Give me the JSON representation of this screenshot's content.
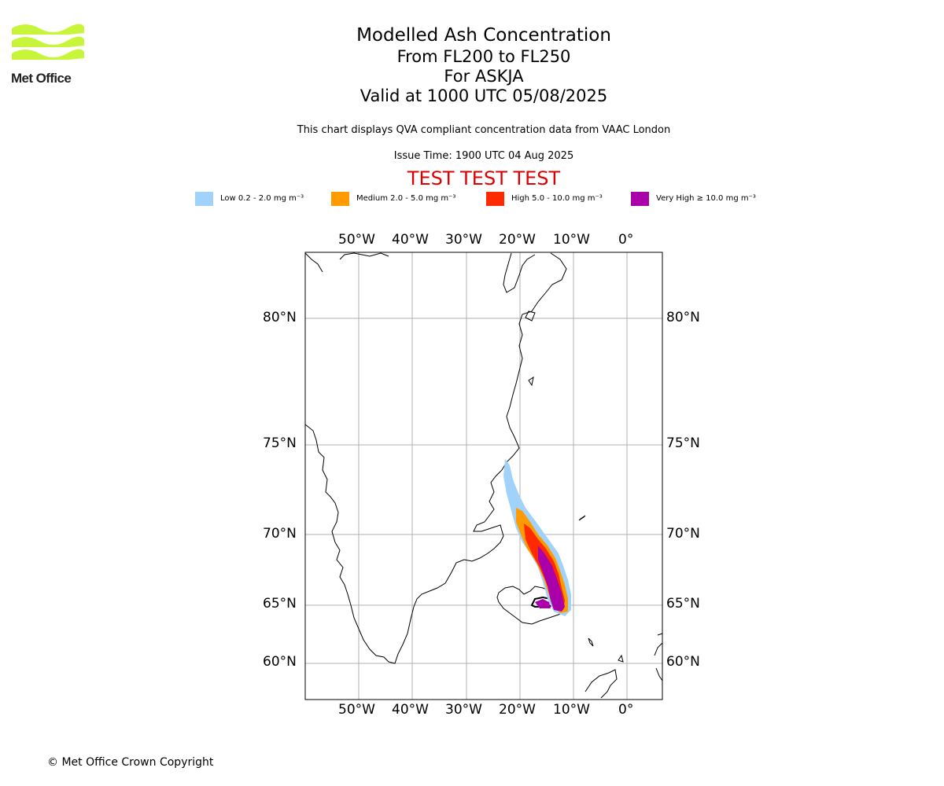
{
  "logo": {
    "text": "Met Office",
    "color": "#c8f53a"
  },
  "title": {
    "main": "Modelled Ash Concentration",
    "levels": "From FL200 to FL250",
    "volcano": "For ASKJA",
    "valid": "Valid at 1000 UTC 05/08/2025"
  },
  "description": "This chart displays QVA compliant concentration data from VAAC London",
  "issue_time": "Issue Time: 1900 UTC 04 Aug 2025",
  "test_banner": {
    "text": "TEST TEST TEST",
    "color": "#dd0000"
  },
  "legend": [
    {
      "label": "Low 0.2 - 2.0 mg m⁻³",
      "color": "#a0d2fa"
    },
    {
      "label": "Medium 2.0 - 5.0 mg m⁻³",
      "color": "#ff9a00"
    },
    {
      "label": "High 5.0 - 10.0 mg m⁻³",
      "color": "#ff2a00"
    },
    {
      "label": "Very High ≥ 10.0 mg m⁻³",
      "color": "#aa00aa"
    }
  ],
  "axes": {
    "longitude_labels": [
      "50°W",
      "40°W",
      "30°W",
      "20°W",
      "10°W",
      "0°"
    ],
    "latitude_labels": [
      "80°N",
      "75°N",
      "70°N",
      "65°N",
      "60°N"
    ],
    "longitudes": [
      -50,
      -40,
      -30,
      -20,
      -10,
      0
    ],
    "latitudes": [
      80,
      75,
      70,
      65,
      60
    ]
  },
  "copyright": "© Met Office Crown Copyright"
}
